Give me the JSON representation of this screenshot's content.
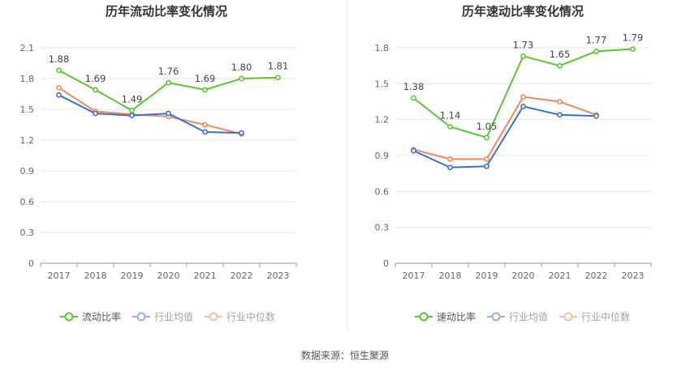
{
  "source_label": "数据来源：恒生聚源",
  "chart_data": [
    {
      "type": "line",
      "title": "历年流动比率变化情况",
      "categories": [
        "2017",
        "2018",
        "2019",
        "2020",
        "2021",
        "2022",
        "2023"
      ],
      "ylim": [
        0,
        2.1
      ],
      "yticks": [
        0,
        0.3,
        0.6,
        0.9,
        1.2,
        1.5,
        1.8,
        2.1
      ],
      "ytick_labels": [
        "0",
        "0.3",
        "0.6",
        "0.9",
        "1.2",
        "1.5",
        "1.8",
        "2.1"
      ],
      "grid": true,
      "legend_position": "bottom",
      "series": [
        {
          "name": "流动比率",
          "color": "#5cc531",
          "values": [
            1.88,
            1.69,
            1.49,
            1.76,
            1.69,
            1.8,
            1.81
          ],
          "labels": [
            "1.88",
            "1.69",
            "1.49",
            "1.76",
            "1.69",
            "1.80",
            "1.81"
          ]
        },
        {
          "name": "行业均值",
          "color": "#3b6fd4",
          "values": [
            1.64,
            1.46,
            1.44,
            1.46,
            1.28,
            1.27,
            null
          ]
        },
        {
          "name": "行业中位数",
          "color": "#f08a5d",
          "values": [
            1.71,
            1.48,
            1.45,
            1.43,
            1.35,
            1.26,
            null
          ]
        }
      ]
    },
    {
      "type": "line",
      "title": "历年速动比率变化情况",
      "categories": [
        "2017",
        "2018",
        "2019",
        "2020",
        "2021",
        "2022",
        "2023"
      ],
      "ylim": [
        0,
        1.8
      ],
      "yticks": [
        0,
        0.3,
        0.6,
        0.9,
        1.2,
        1.5,
        1.8
      ],
      "ytick_labels": [
        "0",
        "0.3",
        "0.6",
        "0.9",
        "1.2",
        "1.5",
        "1.8"
      ],
      "grid": true,
      "legend_position": "bottom",
      "series": [
        {
          "name": "速动比率",
          "color": "#5cc531",
          "values": [
            1.38,
            1.14,
            1.05,
            1.73,
            1.65,
            1.77,
            1.79
          ],
          "labels": [
            "1.38",
            "1.14",
            "1.05",
            "1.73",
            "1.65",
            "1.77",
            "1.79"
          ]
        },
        {
          "name": "行业均值",
          "color": "#3b6fd4",
          "values": [
            0.94,
            0.8,
            0.81,
            1.31,
            1.24,
            1.23,
            null
          ]
        },
        {
          "name": "行业中位数",
          "color": "#f08a5d",
          "values": [
            0.95,
            0.87,
            0.87,
            1.39,
            1.35,
            1.24,
            null
          ]
        }
      ]
    }
  ]
}
